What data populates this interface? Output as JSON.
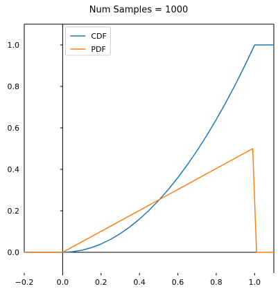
{
  "chart_data": {
    "type": "line",
    "title": "Num Samples = 1000",
    "xlabel": "",
    "ylabel": "",
    "xlim": [
      -0.2,
      1.1
    ],
    "ylim": [
      -0.1,
      1.1
    ],
    "spines": "centered at origin (left spine at x=0, bottom spine at y=0)",
    "grid": false,
    "legend_position": "upper-left",
    "xticks": [
      -0.2,
      0.0,
      0.2,
      0.4,
      0.6,
      0.8,
      1.0
    ],
    "xtick_labels": [
      "−0.2",
      "0.0",
      "0.2",
      "0.4",
      "0.6",
      "0.8",
      "1.0"
    ],
    "yticks": [
      0.0,
      0.2,
      0.4,
      0.6,
      0.8,
      1.0
    ],
    "ytick_labels": [
      "0.0",
      "0.2",
      "0.4",
      "0.6",
      "0.8",
      "1.0"
    ],
    "series": [
      {
        "name": "CDF",
        "color": "#1f77b4",
        "x": [
          -0.2,
          0.0,
          0.05,
          0.1,
          0.15,
          0.2,
          0.25,
          0.3,
          0.35,
          0.4,
          0.45,
          0.5,
          0.55,
          0.6,
          0.65,
          0.7,
          0.75,
          0.8,
          0.85,
          0.9,
          0.95,
          0.99,
          1.0,
          1.1
        ],
        "values": [
          0.0,
          0.0,
          0.0025,
          0.01,
          0.0225,
          0.04,
          0.0625,
          0.09,
          0.1225,
          0.16,
          0.2025,
          0.25,
          0.3025,
          0.36,
          0.4225,
          0.49,
          0.5625,
          0.64,
          0.7225,
          0.81,
          0.9025,
          0.98,
          1.0,
          1.0
        ]
      },
      {
        "name": "PDF",
        "color": "#ff7f0e",
        "x": [
          -0.2,
          0.0,
          0.99,
          1.01,
          1.1
        ],
        "values": [
          0.0,
          0.0,
          0.5,
          0.0,
          0.0
        ]
      }
    ]
  }
}
